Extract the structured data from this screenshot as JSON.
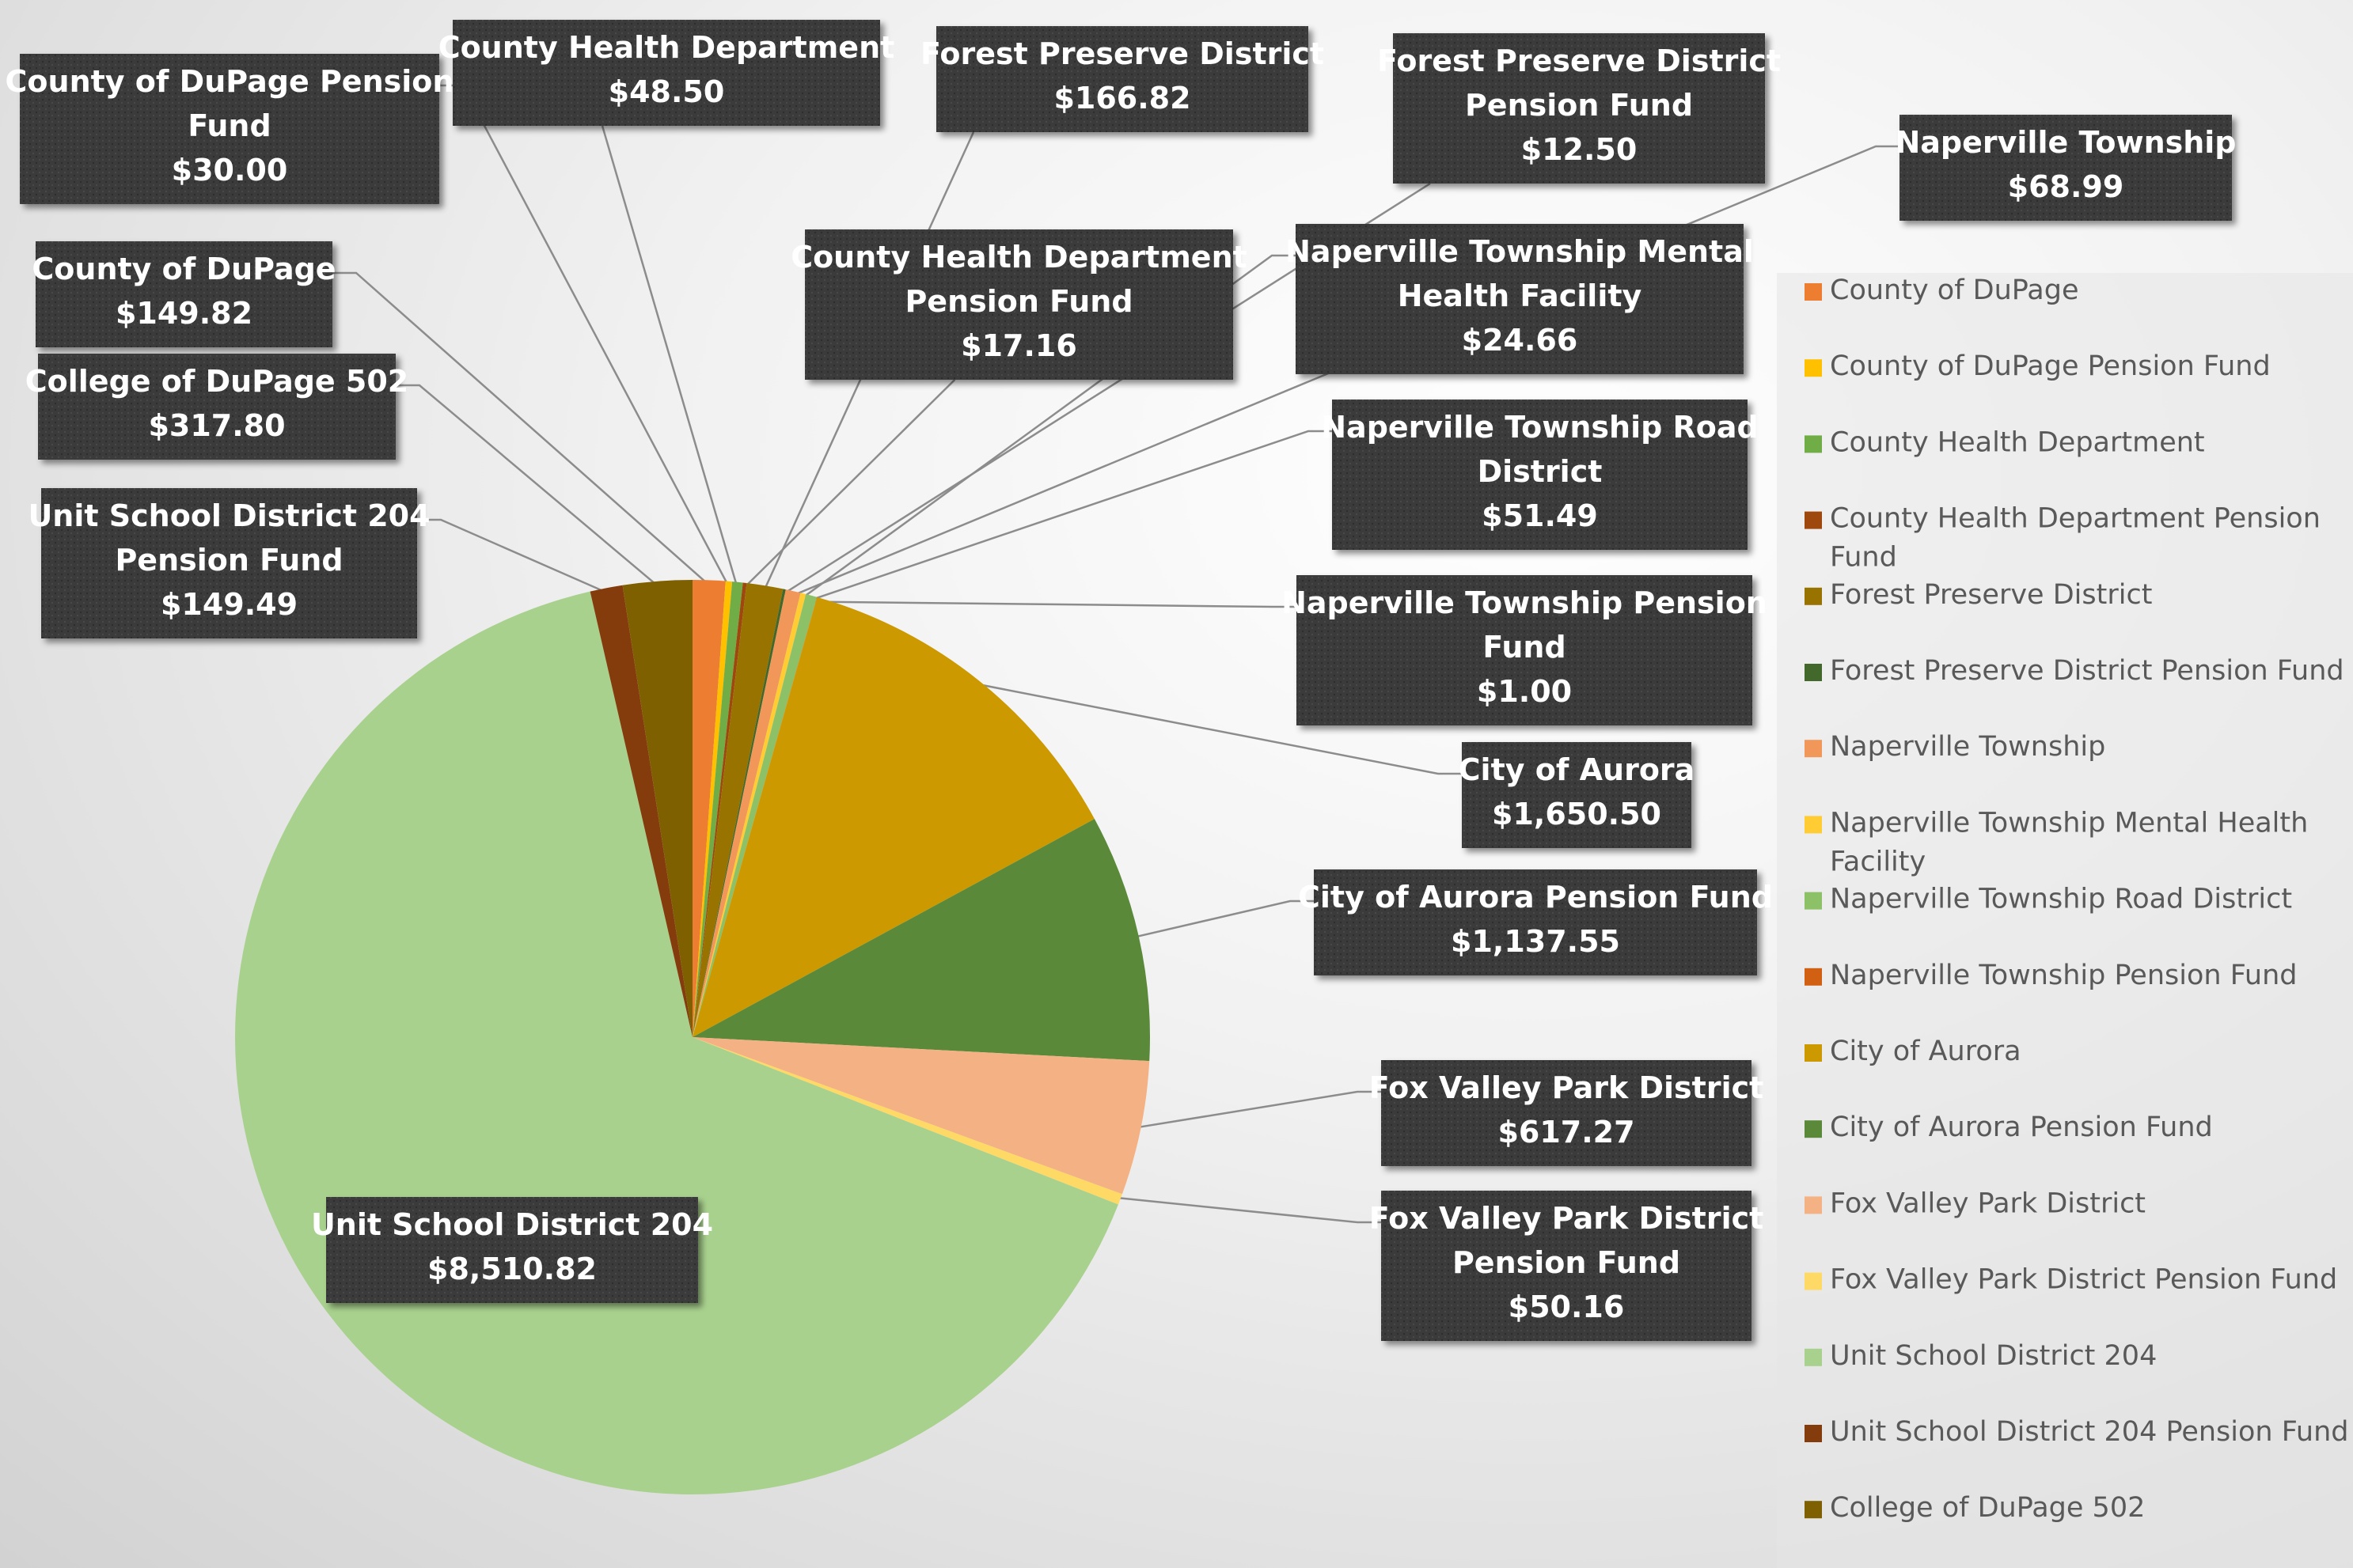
{
  "chart_data": {
    "type": "pie",
    "title": "",
    "legend_position": "right",
    "slices": [
      {
        "name": "County of DuPage",
        "value": 149.82,
        "label_value": "$149.82",
        "color": "#ed7d31"
      },
      {
        "name": "County of DuPage Pension Fund",
        "value": 30.0,
        "label_value": "$30.00",
        "color": "#ffc000"
      },
      {
        "name": "County Health Department",
        "value": 48.5,
        "label_value": "$48.50",
        "color": "#70ad47"
      },
      {
        "name": "County Health Department Pension Fund",
        "value": 17.16,
        "label_value": "$17.16",
        "color": "#9e480e"
      },
      {
        "name": "Forest Preserve District",
        "value": 166.82,
        "label_value": "$166.82",
        "color": "#997300"
      },
      {
        "name": "Forest Preserve District Pension Fund",
        "value": 12.5,
        "label_value": "$12.50",
        "color": "#43682b"
      },
      {
        "name": "Naperville Township",
        "value": 68.99,
        "label_value": "$68.99",
        "color": "#f1975a"
      },
      {
        "name": "Naperville Township Mental Health Facility",
        "value": 24.66,
        "label_value": "$24.66",
        "color": "#ffcd33"
      },
      {
        "name": "Naperville Township Road District",
        "value": 51.49,
        "label_value": "$51.49",
        "color": "#8cc168"
      },
      {
        "name": "Naperville Township Pension Fund",
        "value": 1.0,
        "label_value": "$1.00",
        "color": "#d26012"
      },
      {
        "name": "City of Aurora",
        "value": 1650.5,
        "label_value": "$1,650.50",
        "color": "#cc9a00"
      },
      {
        "name": "City of Aurora Pension Fund",
        "value": 1137.55,
        "label_value": "$1,137.55",
        "color": "#5a8a39"
      },
      {
        "name": "Fox Valley Park District",
        "value": 617.27,
        "label_value": "$617.27",
        "color": "#f4b183"
      },
      {
        "name": "Fox Valley Park District Pension Fund",
        "value": 50.16,
        "label_value": "$50.16",
        "color": "#ffd966"
      },
      {
        "name": "Unit School District 204",
        "value": 8510.82,
        "label_value": "$8,510.82",
        "color": "#a9d18e"
      },
      {
        "name": "Unit School District 204 Pension Fund",
        "value": 149.49,
        "label_value": "$149.49",
        "color": "#843c0c"
      },
      {
        "name": "College of DuPage 502",
        "value": 317.8,
        "label_value": "$317.80",
        "color": "#7f6000"
      }
    ],
    "legend": [
      "County of DuPage",
      "County of DuPage Pension Fund",
      "County Health Department",
      "County Health Department Pension Fund",
      "Forest Preserve District",
      "Forest Preserve District Pension Fund",
      "Naperville Township",
      "Naperville Township Mental Health Facility",
      "Naperville Township Road District",
      "Naperville Township Pension Fund",
      "City of Aurora",
      "City of Aurora Pension Fund",
      "Fox Valley Park District",
      "Fox Valley Park District Pension Fund",
      "Unit School District 204",
      "Unit School District 204 Pension Fund",
      "College of DuPage 502"
    ]
  }
}
